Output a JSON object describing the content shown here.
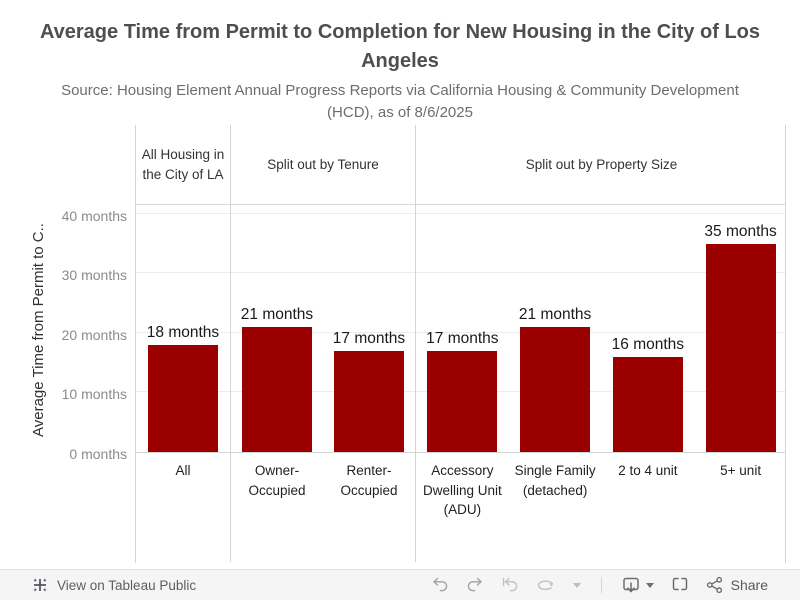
{
  "header": {
    "title": "Average Time from Permit to Completion for New Housing in the City of Los Angeles",
    "subtitle": "Source: Housing Element Annual Progress Reports via California Housing & Community Development (HCD), as of 8/6/2025"
  },
  "chart_data": {
    "type": "bar",
    "title": "Average Time from Permit to Completion for New Housing in the City of Los Angeles",
    "subtitle": "Source: Housing Element Annual Progress Reports via California Housing & Community Development (HCD), as of 8/6/2025",
    "y_axis_title": "Average Time from Permit to C..",
    "y_ticks": [
      0,
      10,
      20,
      30,
      40
    ],
    "y_tick_suffix": " months",
    "ylim": [
      0,
      42
    ],
    "grid": true,
    "legend": "none",
    "bar_color": "#9b0000",
    "groups": [
      {
        "header": "All Housing in the City of LA",
        "categories": [
          "All"
        ],
        "values": [
          18
        ],
        "value_labels": [
          "18 months"
        ]
      },
      {
        "header": "Split out by Tenure",
        "categories": [
          "Owner-Occupied",
          "Renter-Occupied"
        ],
        "values": [
          21,
          17
        ],
        "value_labels": [
          "21 months",
          "17 months"
        ]
      },
      {
        "header": "Split out by Property Size",
        "categories": [
          "Accessory Dwelling Unit (ADU)",
          "Single Family (detached)",
          "2 to 4 unit",
          "5+ unit"
        ],
        "values": [
          17,
          21,
          16,
          35
        ],
        "value_labels": [
          "17 months",
          "21 months",
          "16 months",
          "35 months"
        ]
      }
    ]
  },
  "toolbar": {
    "view_link_label": "View on Tableau Public",
    "share_label": "Share",
    "icons": [
      "tableau-logo-icon",
      "undo-icon",
      "redo-icon",
      "revert-icon",
      "refresh-icon",
      "caret-down-icon",
      "download-icon",
      "caret-down-icon",
      "fullscreen-icon",
      "share-icon"
    ]
  },
  "colors": {
    "bar": "#9b0000",
    "grid_line": "#ececec",
    "divider": "#d4d4d4",
    "tick_text": "#8b8b8b",
    "title_text": "#4e4e4e",
    "subtitle_text": "#6d6d6d",
    "toolbar_bg": "#f5f5f5",
    "toolbar_icon_active": "#6e6e6e",
    "toolbar_icon_disabled": "#c3c3c3"
  }
}
